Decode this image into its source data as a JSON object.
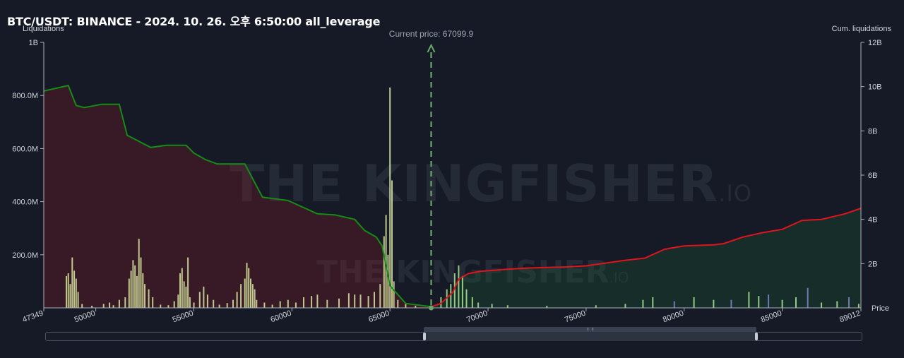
{
  "header": {
    "title": "BTC/USDT: BINANCE - 2024. 10. 26. 오후 6:50:00 all_leverage"
  },
  "watermark": {
    "main": "THE KINGFISHER",
    "suffix": "IO"
  },
  "colors": {
    "background": "#151a26",
    "short_line": "#168b16",
    "short_area": "rgba(120,30,40,0.35)",
    "long_line": "#e0141c",
    "long_area": "rgba(30,90,50,0.30)",
    "bars": "#d8e8a0",
    "bars_right": "#a8e890",
    "bars_blue": "#7a8cc8",
    "current_price": "#6aa86a"
  },
  "chart_data": {
    "type": "bar",
    "current_price_label": "Current price: 67099.9",
    "current_price": 67099.9,
    "x_axis": {
      "label": "Price",
      "min": 47349,
      "max": 89012,
      "ticks": [
        47349,
        50000,
        55000,
        60000,
        65000,
        70000,
        75000,
        80000,
        85000,
        89012
      ],
      "tick_labels": [
        "47349",
        "50000",
        "55000",
        "60000",
        "65000",
        "70000",
        "75000",
        "80000",
        "85000",
        "89012"
      ]
    },
    "y_left": {
      "label": "Liquidations",
      "min": 0,
      "max": 1000000000,
      "ticks": [
        200000000,
        400000000,
        600000000,
        800000000,
        1000000000
      ],
      "tick_labels": [
        "200.0M",
        "400.0M",
        "600.0M",
        "800.0M",
        "1B"
      ]
    },
    "y_right": {
      "label": "Cum. liquidations",
      "min": 0,
      "max": 12000000000,
      "ticks": [
        2000000000,
        4000000000,
        6000000000,
        8000000000,
        10000000000,
        12000000000
      ],
      "tick_labels": [
        "2B",
        "4B",
        "6B",
        "8B",
        "10B",
        "12B"
      ]
    },
    "series": [
      {
        "kind": "cumulative",
        "side": "below",
        "x": [
          47349,
          48600,
          49000,
          49400,
          50300,
          51200,
          51600,
          52800,
          53600,
          54600,
          55000,
          55600,
          56200,
          57000,
          57600,
          58500,
          59800,
          61300,
          62200,
          63200,
          63700,
          64300,
          64600,
          65000,
          65800,
          67099.9
        ],
        "y": [
          9800000000,
          10050000000,
          9150000000,
          9050000000,
          9200000000,
          9200000000,
          7800000000,
          7250000000,
          7350000000,
          7350000000,
          7000000000,
          6700000000,
          6500000000,
          6500000000,
          6500000000,
          5000000000,
          4850000000,
          4250000000,
          4200000000,
          4000000000,
          3500000000,
          3200000000,
          2800000000,
          1000000000,
          200000000,
          50000000
        ]
      },
      {
        "kind": "cumulative",
        "side": "above",
        "x": [
          67099.9,
          67600,
          68200,
          68500,
          69000,
          69600,
          71000,
          72000,
          74000,
          75000,
          77000,
          78000,
          79000,
          80000,
          81500,
          82000,
          83000,
          84000,
          85000,
          86000,
          87000,
          88200,
          89012
        ],
        "y": [
          50000000,
          200000000,
          700000000,
          1300000000,
          1550000000,
          1650000000,
          1750000000,
          1800000000,
          1850000000,
          1900000000,
          2150000000,
          2250000000,
          2650000000,
          2800000000,
          2850000000,
          2900000000,
          3200000000,
          3400000000,
          3550000000,
          3950000000,
          4000000000,
          4250000000,
          4500000000
        ]
      }
    ],
    "bars": [
      [
        48500,
        120000000
      ],
      [
        48600,
        130000000
      ],
      [
        48700,
        90000000
      ],
      [
        48800,
        190000000
      ],
      [
        48900,
        140000000
      ],
      [
        49000,
        110000000
      ],
      [
        49100,
        60000000
      ],
      [
        49300,
        15000000
      ],
      [
        49800,
        8000000
      ],
      [
        50400,
        15000000
      ],
      [
        50700,
        20000000
      ],
      [
        50900,
        10000000
      ],
      [
        51200,
        30000000
      ],
      [
        51500,
        40000000
      ],
      [
        51700,
        110000000
      ],
      [
        51800,
        140000000
      ],
      [
        51900,
        180000000
      ],
      [
        52000,
        160000000
      ],
      [
        52100,
        120000000
      ],
      [
        52200,
        260000000
      ],
      [
        52300,
        190000000
      ],
      [
        52400,
        130000000
      ],
      [
        52500,
        90000000
      ],
      [
        52700,
        70000000
      ],
      [
        52900,
        40000000
      ],
      [
        53300,
        12000000
      ],
      [
        53700,
        10000000
      ],
      [
        54000,
        25000000
      ],
      [
        54200,
        50000000
      ],
      [
        54300,
        130000000
      ],
      [
        54400,
        150000000
      ],
      [
        54500,
        100000000
      ],
      [
        54600,
        80000000
      ],
      [
        54700,
        190000000
      ],
      [
        54800,
        40000000
      ],
      [
        55000,
        20000000
      ],
      [
        55300,
        60000000
      ],
      [
        55500,
        80000000
      ],
      [
        55700,
        50000000
      ],
      [
        56000,
        30000000
      ],
      [
        56300,
        12000000
      ],
      [
        56700,
        18000000
      ],
      [
        57000,
        30000000
      ],
      [
        57200,
        60000000
      ],
      [
        57400,
        90000000
      ],
      [
        57600,
        110000000
      ],
      [
        57700,
        170000000
      ],
      [
        57800,
        150000000
      ],
      [
        57900,
        110000000
      ],
      [
        58000,
        90000000
      ],
      [
        58100,
        70000000
      ],
      [
        58200,
        30000000
      ],
      [
        58600,
        20000000
      ],
      [
        59000,
        12000000
      ],
      [
        59400,
        25000000
      ],
      [
        59800,
        30000000
      ],
      [
        60200,
        20000000
      ],
      [
        60600,
        40000000
      ],
      [
        61000,
        45000000
      ],
      [
        61300,
        50000000
      ],
      [
        61800,
        30000000
      ],
      [
        62400,
        35000000
      ],
      [
        62900,
        55000000
      ],
      [
        63200,
        50000000
      ],
      [
        63500,
        50000000
      ],
      [
        63900,
        45000000
      ],
      [
        64200,
        60000000
      ],
      [
        64500,
        90000000
      ],
      [
        64700,
        270000000
      ],
      [
        64800,
        350000000
      ],
      [
        64900,
        200000000
      ],
      [
        65000,
        830000000
      ],
      [
        65100,
        480000000
      ],
      [
        65200,
        100000000
      ],
      [
        65400,
        30000000
      ],
      [
        65800,
        15000000
      ],
      [
        66300,
        8000000
      ],
      [
        67600,
        40000000
      ],
      [
        67900,
        70000000
      ],
      [
        68100,
        90000000
      ],
      [
        68300,
        130000000
      ],
      [
        68500,
        160000000
      ],
      [
        68700,
        120000000
      ],
      [
        68900,
        70000000
      ],
      [
        69200,
        40000000
      ],
      [
        69500,
        20000000
      ],
      [
        70200,
        15000000
      ],
      [
        71000,
        10000000
      ],
      [
        73000,
        8000000
      ],
      [
        75500,
        10000000
      ],
      [
        77000,
        15000000
      ],
      [
        77900,
        30000000
      ],
      [
        78400,
        40000000
      ],
      [
        79500,
        25000000
      ],
      [
        80500,
        40000000
      ],
      [
        81500,
        30000000
      ],
      [
        82400,
        30000000
      ],
      [
        83300,
        60000000
      ],
      [
        83800,
        45000000
      ],
      [
        84300,
        50000000
      ],
      [
        85000,
        30000000
      ],
      [
        85700,
        40000000
      ],
      [
        86300,
        75000000
      ],
      [
        87000,
        20000000
      ],
      [
        87800,
        25000000
      ],
      [
        88400,
        40000000
      ],
      [
        88900,
        15000000
      ]
    ]
  }
}
